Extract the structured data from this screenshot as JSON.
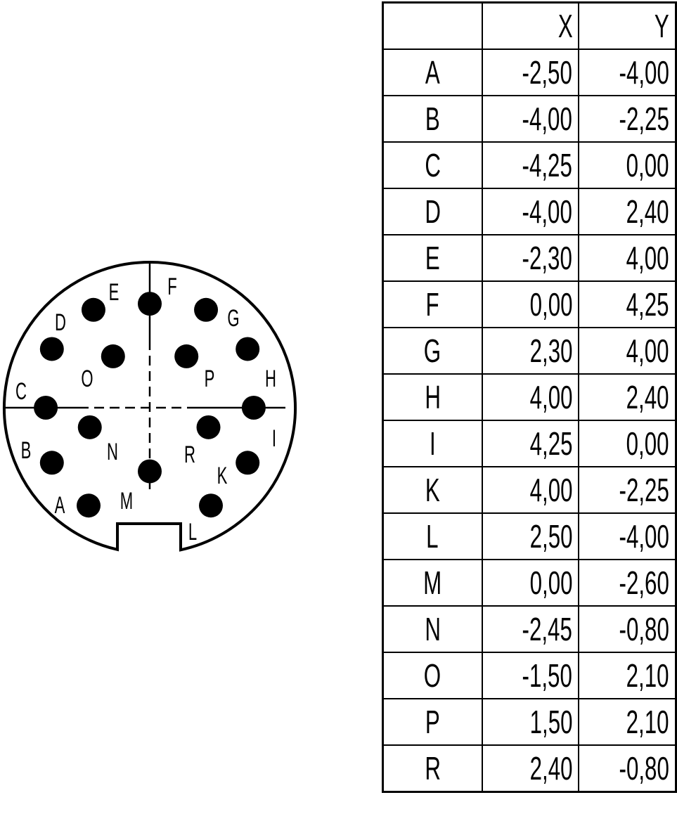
{
  "table": {
    "headers": [
      "",
      "X",
      "Y"
    ],
    "rows": [
      {
        "pin": "A",
        "x": "-2,50",
        "y": "-4,00"
      },
      {
        "pin": "B",
        "x": "-4,00",
        "y": "-2,25"
      },
      {
        "pin": "C",
        "x": "-4,25",
        "y": "0,00"
      },
      {
        "pin": "D",
        "x": "-4,00",
        "y": "2,40"
      },
      {
        "pin": "E",
        "x": "-2,30",
        "y": "4,00"
      },
      {
        "pin": "F",
        "x": "0,00",
        "y": "4,25"
      },
      {
        "pin": "G",
        "x": "2,30",
        "y": "4,00"
      },
      {
        "pin": "H",
        "x": "4,00",
        "y": "2,40"
      },
      {
        "pin": "I",
        "x": "4,25",
        "y": "0,00"
      },
      {
        "pin": "K",
        "x": "4,00",
        "y": "-2,25"
      },
      {
        "pin": "L",
        "x": "2,50",
        "y": "-4,00"
      },
      {
        "pin": "M",
        "x": "0,00",
        "y": "-2,60"
      },
      {
        "pin": "N",
        "x": "-2,45",
        "y": "-0,80"
      },
      {
        "pin": "O",
        "x": "-1,50",
        "y": "2,10"
      },
      {
        "pin": "P",
        "x": "1,50",
        "y": "2,10"
      },
      {
        "pin": "R",
        "x": "2,40",
        "y": "-0,80"
      }
    ]
  },
  "colors": {
    "ink": "#000000",
    "background": "#ffffff"
  }
}
